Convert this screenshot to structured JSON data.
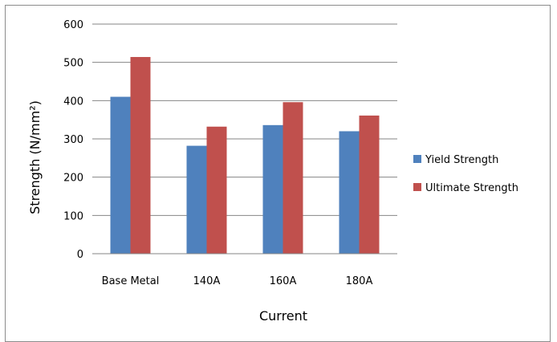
{
  "chart_data": {
    "type": "bar",
    "title": "",
    "xlabel": "Current",
    "ylabel": "Strength (N/mm²)",
    "categories": [
      "Base Metal",
      "140A",
      "160A",
      "180A"
    ],
    "series": [
      {
        "name": "Yield Strength",
        "values": [
          410,
          282,
          336,
          320
        ],
        "color": "#4f81bd"
      },
      {
        "name": "Ultimate Strength",
        "values": [
          514,
          332,
          396,
          361
        ],
        "color": "#c0504d"
      }
    ],
    "ylim": [
      0,
      600
    ],
    "yticks": [
      0,
      100,
      200,
      300,
      400,
      500,
      600
    ],
    "grid": true,
    "legend_position": "right"
  }
}
